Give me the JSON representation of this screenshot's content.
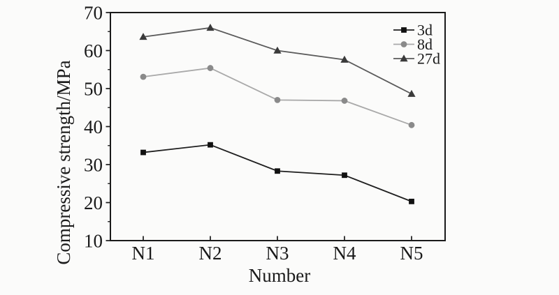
{
  "chart_data": {
    "type": "line",
    "title": "",
    "xlabel": "Number",
    "ylabel": "Compressive strength/MPa",
    "categories": [
      "N1",
      "N2",
      "N3",
      "N4",
      "N5"
    ],
    "ylim": [
      10,
      70
    ],
    "yticks": [
      10,
      20,
      30,
      40,
      50,
      60,
      70
    ],
    "y_minor_step": 5,
    "grid": false,
    "legend_position": "top-right-inside",
    "series": [
      {
        "name": "3d",
        "marker": "square",
        "line_color": "#1f1f1f",
        "marker_color": "#111111",
        "values": [
          33.2,
          35.2,
          28.3,
          27.2,
          20.3
        ]
      },
      {
        "name": "8d",
        "marker": "circle",
        "line_color": "#a9a9a9",
        "marker_color": "#8a8a8a",
        "values": [
          53.1,
          55.4,
          47.0,
          46.8,
          40.4
        ]
      },
      {
        "name": "27d",
        "marker": "triangle",
        "line_color": "#5a5a5a",
        "marker_color": "#3a3a3a",
        "values": [
          63.6,
          66.0,
          60.0,
          57.6,
          48.6
        ]
      }
    ],
    "colors": {
      "axis": "#1a1a1a",
      "background": "#fbfbfa"
    }
  }
}
